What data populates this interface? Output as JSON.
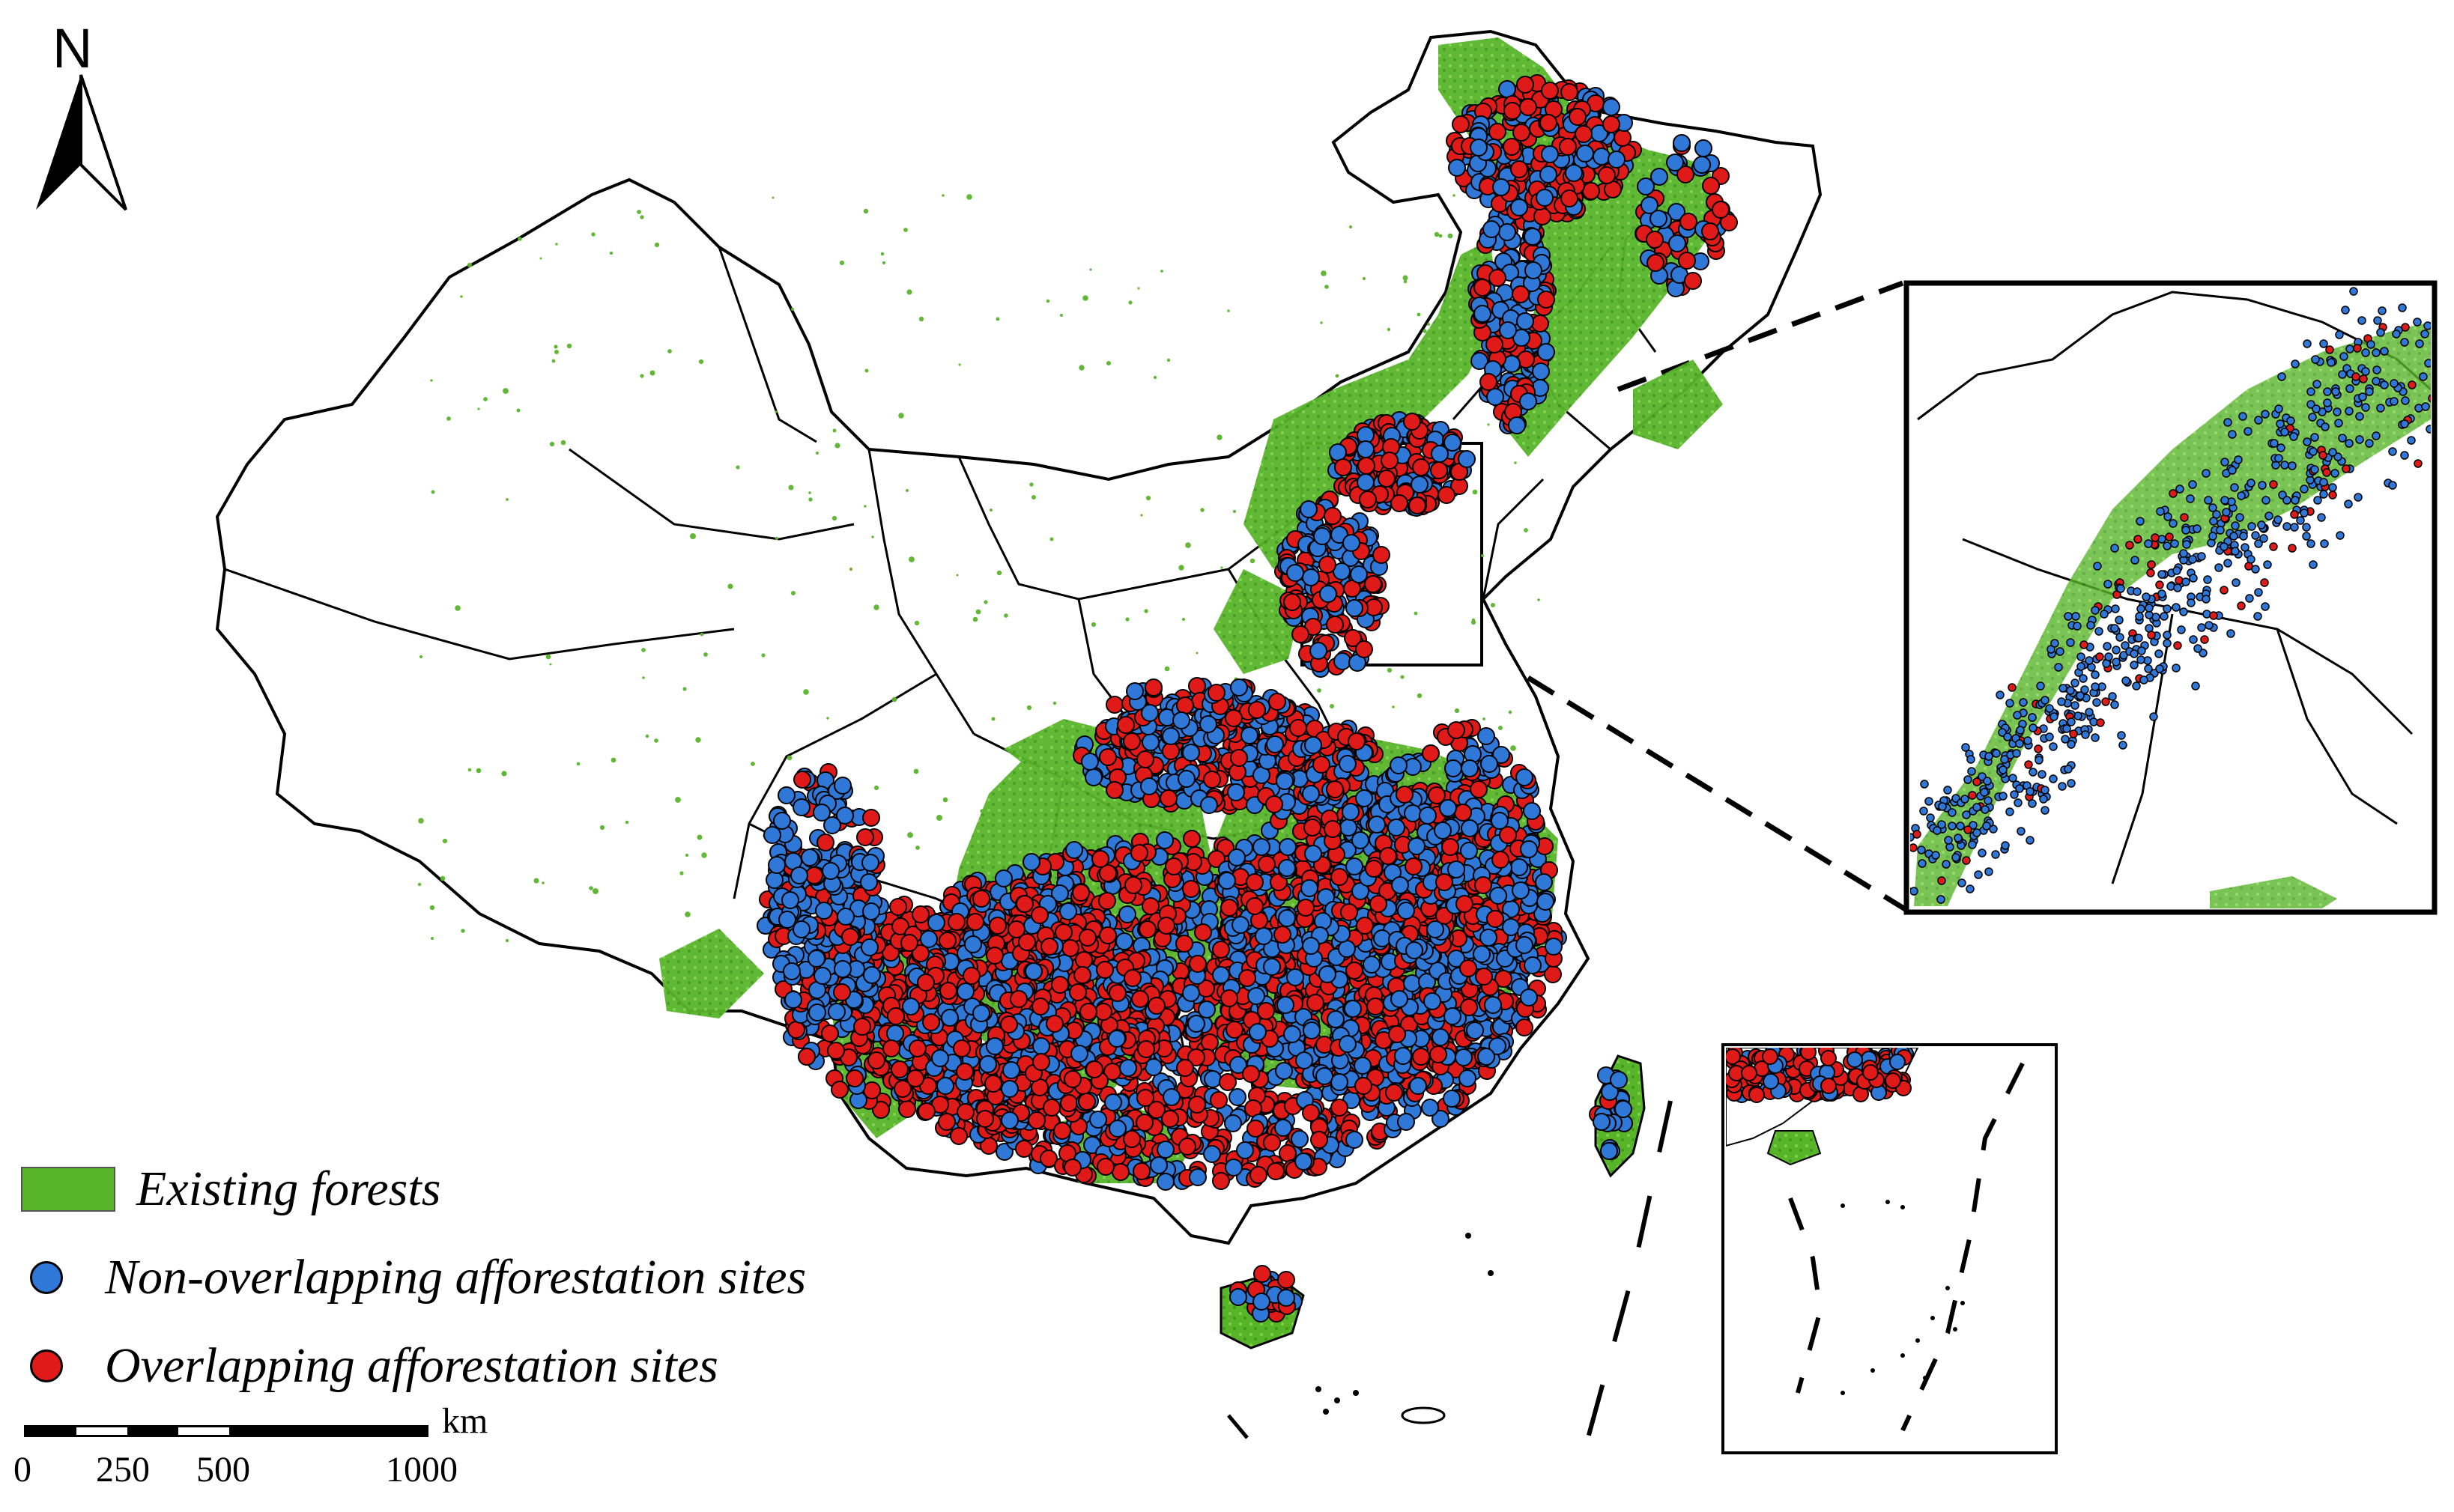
{
  "north_arrow": {
    "label": "N"
  },
  "legend": {
    "forest": {
      "label": "Existing forests",
      "color": "#4caf1e"
    },
    "non_overlap": {
      "label": "Non-overlapping afforestation sites",
      "color": "#2f78d8"
    },
    "overlap": {
      "label": "Overlapping afforestation sites",
      "color": "#e01919"
    }
  },
  "scale_bar": {
    "unit": "km",
    "ticks": [
      "0",
      "250",
      "500",
      "1000"
    ]
  }
}
